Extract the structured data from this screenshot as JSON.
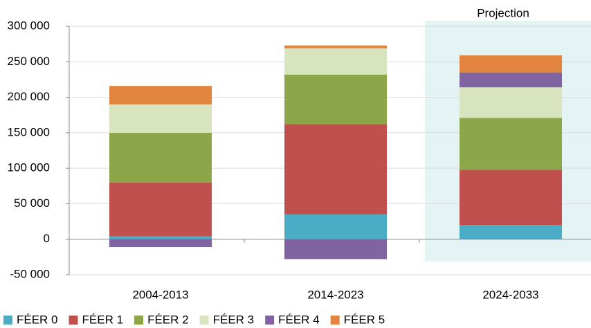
{
  "chart_data": {
    "type": "stacked_bar",
    "categories": [
      "2004-2013",
      "2014-2023",
      "2024-2033"
    ],
    "series": [
      {
        "name": "FÉER 0",
        "color": "#4bacc6",
        "values": [
          4000,
          35000,
          20000
        ]
      },
      {
        "name": "FÉER 1",
        "color": "#c0504d",
        "values": [
          76000,
          127000,
          78000
        ]
      },
      {
        "name": "FÉER 2",
        "color": "#8ea64a",
        "values": [
          70000,
          70000,
          73000
        ]
      },
      {
        "name": "FÉER 3",
        "color": "#d7e4bd",
        "values": [
          40000,
          37000,
          43000
        ]
      },
      {
        "name": "FÉER 4",
        "color": "#8064a2",
        "values": [
          -11000,
          -28000,
          21000
        ]
      },
      {
        "name": "FÉER 5",
        "color": "#e0843f",
        "values": [
          26000,
          4000,
          24000
        ]
      }
    ],
    "ylim": [
      -50000,
      300000
    ],
    "yticks": [
      {
        "value": -50000,
        "label": "-50 000"
      },
      0,
      {
        "value": 50000,
        "label": "50 000"
      },
      {
        "value": 100000,
        "label": "100 000"
      },
      {
        "value": 150000,
        "label": "150 000"
      },
      {
        "value": 200000,
        "label": "200 000"
      },
      {
        "value": 250000,
        "label": "250 000"
      },
      {
        "value": 300000,
        "label": "300 000"
      }
    ],
    "grid": true,
    "legend": "bottom",
    "highlight": {
      "category": "2024-2033",
      "label": "Projection",
      "color": "#e4f3f3"
    }
  }
}
